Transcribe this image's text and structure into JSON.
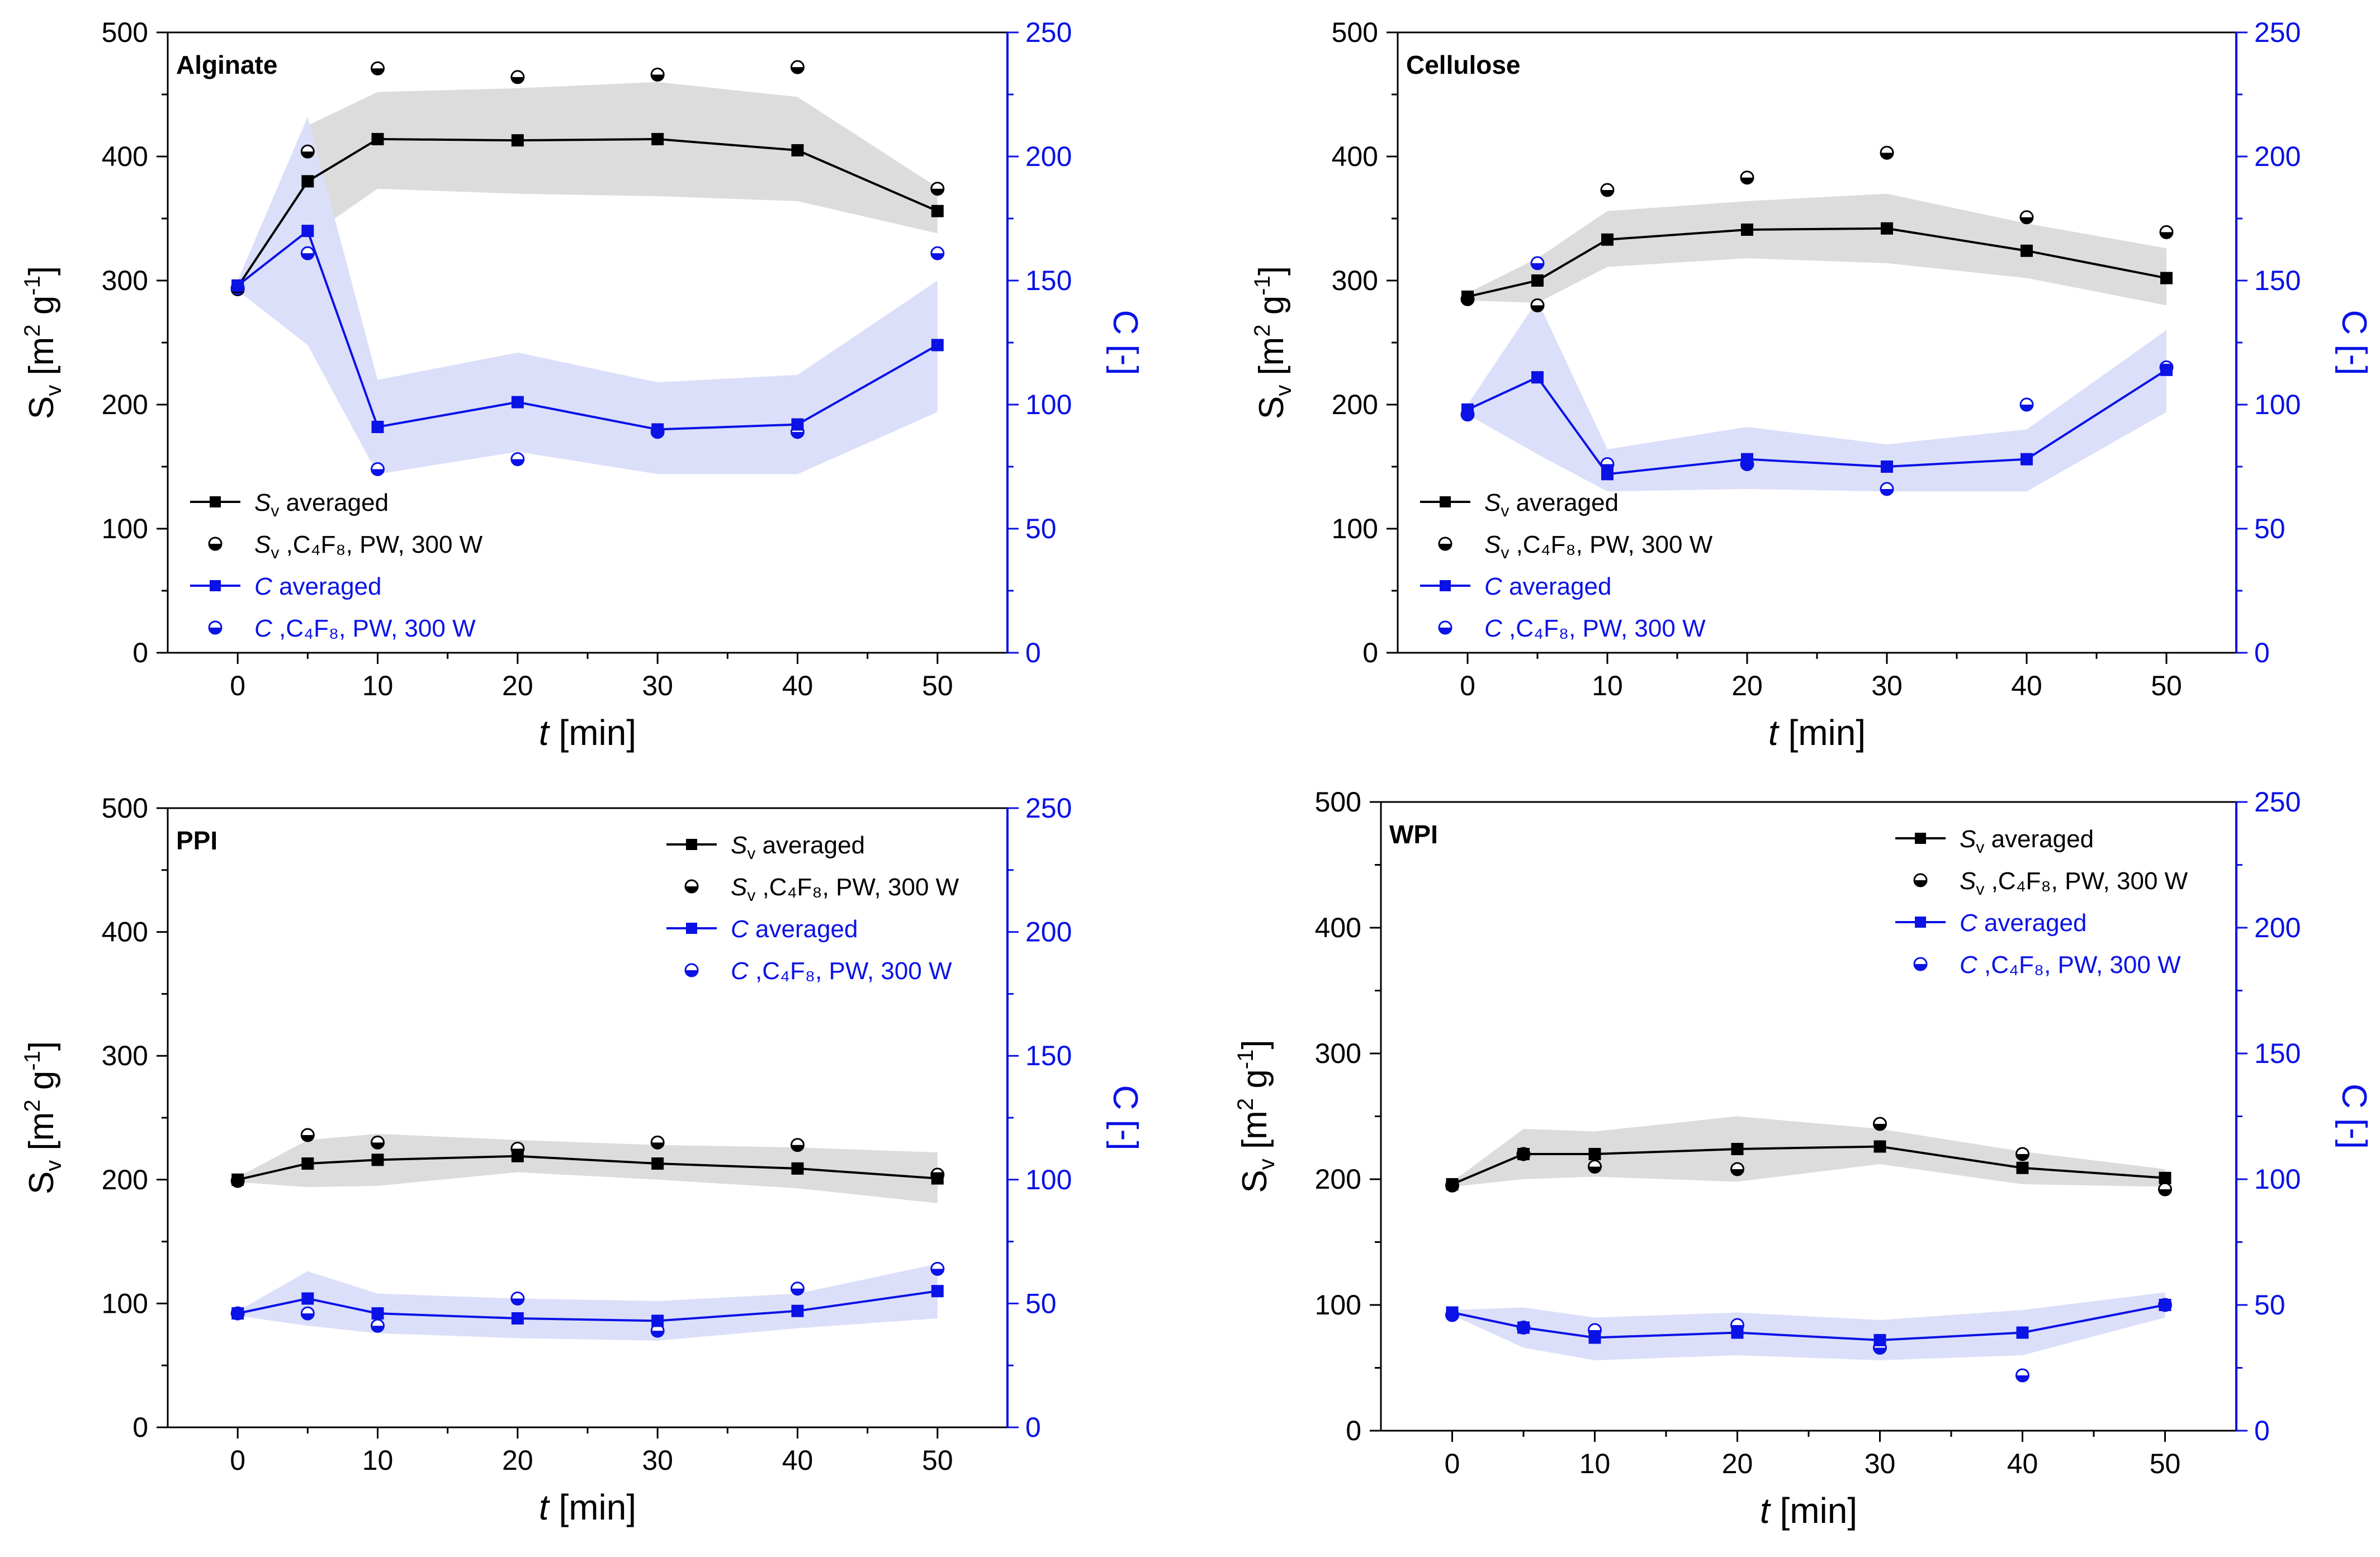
{
  "colors": {
    "sv": "#000000",
    "c": "#0a12e6",
    "sv_band": "#dcdcdc",
    "c_band": "#dcdff9"
  },
  "chart_data": [
    {
      "type": "line",
      "title": "Alginate",
      "xlabel_italic": "t",
      "xlabel_unit": " [min]",
      "ylabel_left": "S",
      "ylabel_left_sub": "v",
      "ylabel_left_unit_open": " [m",
      "ylabel_left_unit_sup1": "2",
      "ylabel_left_unit_mid": " g",
      "ylabel_left_unit_sup2": "-1",
      "ylabel_left_unit_close": "]",
      "ylabel_right": "C [-]",
      "xlim": [
        -5,
        55
      ],
      "ylim_left": [
        0,
        500
      ],
      "ylim_right": [
        0,
        250
      ],
      "x_ticks": [
        0,
        10,
        20,
        30,
        40,
        50
      ],
      "y_left_ticks": [
        0,
        100,
        200,
        300,
        400,
        500
      ],
      "y_right_ticks": [
        0,
        50,
        100,
        150,
        200,
        250
      ],
      "legend_position": "bottom-left",
      "legend": [
        {
          "symbol": "line-square-black",
          "main": "S",
          "sub": "v",
          "rest": "  averaged"
        },
        {
          "symbol": "half-circle-black",
          "main": "S",
          "sub": "v",
          "rest": " ,C₄F₈, PW, 300 W"
        },
        {
          "symbol": "line-square-blue",
          "main": "C",
          "sub": "",
          "rest": "   averaged"
        },
        {
          "symbol": "half-circle-blue",
          "main": "C",
          "sub": "",
          "rest": " ,C₄F₈, PW, 300 W"
        }
      ],
      "x": [
        0,
        5,
        10,
        20,
        30,
        40,
        50
      ],
      "sv_avg": [
        295,
        380,
        414,
        413,
        414,
        405,
        356
      ],
      "sv_band_upper": [
        298,
        425,
        452,
        455,
        460,
        448,
        375
      ],
      "sv_band_lower": [
        292,
        335,
        374,
        370,
        368,
        364,
        338
      ],
      "sv_pw": [
        293,
        404,
        471,
        464,
        466,
        472,
        374
      ],
      "c_avg": [
        148,
        170,
        91,
        101,
        90,
        92,
        124
      ],
      "c_band_upper": [
        150,
        216,
        110,
        121,
        109,
        112,
        150
      ],
      "c_band_lower": [
        146,
        124,
        72,
        81,
        72,
        72,
        97
      ],
      "c_pw": [
        147,
        161,
        74,
        78,
        89,
        89,
        161
      ]
    },
    {
      "type": "line",
      "title": "Cellulose",
      "xlabel_italic": "t",
      "xlabel_unit": " [min]",
      "ylabel_left": "S",
      "ylabel_left_sub": "v",
      "ylabel_left_unit_open": " [m",
      "ylabel_left_unit_sup1": "2",
      "ylabel_left_unit_mid": " g",
      "ylabel_left_unit_sup2": "-1",
      "ylabel_left_unit_close": "]",
      "ylabel_right": "C [-]",
      "xlim": [
        -5,
        55
      ],
      "ylim_left": [
        0,
        500
      ],
      "ylim_right": [
        0,
        250
      ],
      "x_ticks": [
        0,
        10,
        20,
        30,
        40,
        50
      ],
      "y_left_ticks": [
        0,
        100,
        200,
        300,
        400,
        500
      ],
      "y_right_ticks": [
        0,
        50,
        100,
        150,
        200,
        250
      ],
      "legend_position": "bottom-left",
      "legend": [
        {
          "symbol": "line-square-black",
          "main": "S",
          "sub": "v",
          "rest": "  averaged"
        },
        {
          "symbol": "half-circle-black",
          "main": "S",
          "sub": "v",
          "rest": " ,C₄F₈, PW, 300 W"
        },
        {
          "symbol": "line-square-blue",
          "main": "C",
          "sub": "",
          "rest": "   averaged"
        },
        {
          "symbol": "half-circle-blue",
          "main": "C",
          "sub": "",
          "rest": " ,C₄F₈, PW, 300 W"
        }
      ],
      "x": [
        0,
        5,
        10,
        20,
        30,
        40,
        50
      ],
      "sv_avg": [
        287,
        300,
        333,
        341,
        342,
        324,
        302
      ],
      "sv_band_upper": [
        290,
        318,
        356,
        364,
        370,
        346,
        326
      ],
      "sv_band_lower": [
        284,
        282,
        311,
        318,
        314,
        302,
        280
      ],
      "sv_pw": [
        285,
        280,
        373,
        383,
        403,
        351,
        339
      ],
      "c_avg": [
        98,
        111,
        72,
        78,
        75,
        78,
        114
      ],
      "c_band_upper": [
        100,
        142,
        82,
        91,
        84,
        90,
        130
      ],
      "c_band_lower": [
        96,
        80,
        65,
        66,
        65,
        65,
        97
      ],
      "c_pw": [
        96,
        157,
        76,
        76,
        66,
        100,
        115
      ]
    },
    {
      "type": "line",
      "title": "PPI",
      "xlabel_italic": "t",
      "xlabel_unit": " [min]",
      "ylabel_left": "S",
      "ylabel_left_sub": "v",
      "ylabel_left_unit_open": " [m",
      "ylabel_left_unit_sup1": "2",
      "ylabel_left_unit_mid": " g",
      "ylabel_left_unit_sup2": "-1",
      "ylabel_left_unit_close": "]",
      "ylabel_right": "C [-]",
      "xlim": [
        -5,
        55
      ],
      "ylim_left": [
        0,
        500
      ],
      "ylim_right": [
        0,
        250
      ],
      "x_ticks": [
        0,
        10,
        20,
        30,
        40,
        50
      ],
      "y_left_ticks": [
        0,
        100,
        200,
        300,
        400,
        500
      ],
      "y_right_ticks": [
        0,
        50,
        100,
        150,
        200,
        250
      ],
      "legend_position": "top-right",
      "legend": [
        {
          "symbol": "line-square-black",
          "main": "S",
          "sub": "v",
          "rest": "  averaged"
        },
        {
          "symbol": "half-circle-black",
          "main": "S",
          "sub": "v",
          "rest": " ,C₄F₈, PW, 300 W"
        },
        {
          "symbol": "line-square-blue",
          "main": "C",
          "sub": "",
          "rest": "   averaged"
        },
        {
          "symbol": "half-circle-blue",
          "main": "C",
          "sub": "",
          "rest": " ,C₄F₈, PW, 300 W"
        }
      ],
      "x": [
        0,
        5,
        10,
        20,
        30,
        40,
        50
      ],
      "sv_avg": [
        200,
        213,
        216,
        219,
        213,
        209,
        201
      ],
      "sv_band_upper": [
        202,
        232,
        237,
        232,
        228,
        226,
        222
      ],
      "sv_band_lower": [
        198,
        194,
        195,
        206,
        200,
        193,
        181
      ],
      "sv_pw": [
        199,
        236,
        230,
        225,
        230,
        228,
        204
      ],
      "c_avg": [
        46,
        52,
        46,
        44,
        43,
        47,
        55
      ],
      "c_band_upper": [
        47,
        63,
        54,
        52,
        51,
        54,
        66
      ],
      "c_band_lower": [
        45,
        41,
        38,
        36,
        35,
        40,
        44
      ],
      "c_pw": [
        46,
        46,
        41,
        52,
        39,
        56,
        64
      ]
    },
    {
      "type": "line",
      "title": "WPI",
      "xlabel_italic": "t",
      "xlabel_unit": " [min]",
      "ylabel_left": "S",
      "ylabel_left_sub": "v",
      "ylabel_left_unit_open": " [m",
      "ylabel_left_unit_sup1": "2",
      "ylabel_left_unit_mid": " g",
      "ylabel_left_unit_sup2": "-1",
      "ylabel_left_unit_close": "]",
      "ylabel_right": "C [-]",
      "xlim": [
        -5,
        55
      ],
      "ylim_left": [
        0,
        500
      ],
      "ylim_right": [
        0,
        250
      ],
      "x_ticks": [
        0,
        10,
        20,
        30,
        40,
        50
      ],
      "y_left_ticks": [
        0,
        100,
        200,
        300,
        400,
        500
      ],
      "y_right_ticks": [
        0,
        50,
        100,
        150,
        200,
        250
      ],
      "legend_position": "top-right",
      "legend": [
        {
          "symbol": "line-square-black",
          "main": "S",
          "sub": "v",
          "rest": "  averaged"
        },
        {
          "symbol": "half-circle-black",
          "main": "S",
          "sub": "v",
          "rest": " ,C₄F₈, PW, 300 W"
        },
        {
          "symbol": "line-square-blue",
          "main": "C",
          "sub": "",
          "rest": "   averaged"
        },
        {
          "symbol": "half-circle-blue",
          "main": "C",
          "sub": "",
          "rest": " ,C₄F₈, PW, 300 W"
        }
      ],
      "x": [
        0,
        5,
        10,
        20,
        30,
        40,
        50
      ],
      "sv_avg": [
        196,
        220,
        220,
        224,
        226,
        209,
        201
      ],
      "sv_band_upper": [
        198,
        240,
        238,
        250,
        240,
        222,
        208
      ],
      "sv_band_lower": [
        194,
        200,
        202,
        198,
        212,
        196,
        194
      ],
      "sv_pw": [
        195,
        220,
        210,
        208,
        244,
        220,
        192
      ],
      "c_avg": [
        47,
        41,
        37,
        39,
        36,
        39,
        50
      ],
      "c_band_upper": [
        48,
        49,
        45,
        47,
        44,
        48,
        55
      ],
      "c_band_lower": [
        46,
        33,
        28,
        30,
        28,
        30,
        45
      ],
      "c_pw": [
        46,
        41,
        40,
        42,
        33,
        22,
        50
      ]
    }
  ]
}
